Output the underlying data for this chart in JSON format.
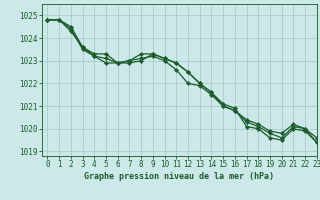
{
  "title": "Graphe pression niveau de la mer (hPa)",
  "background_color": "#cce8e8",
  "plot_bg_color": "#cce8e8",
  "grid_color": "#aacccc",
  "line_color": "#1a5c2a",
  "spine_color": "#2a6e3a",
  "xlim": [
    -0.5,
    23
  ],
  "ylim": [
    1018.8,
    1025.5
  ],
  "yticks": [
    1019,
    1020,
    1021,
    1022,
    1023,
    1024,
    1025
  ],
  "xticks": [
    0,
    1,
    2,
    3,
    4,
    5,
    6,
    7,
    8,
    9,
    10,
    11,
    12,
    13,
    14,
    15,
    16,
    17,
    18,
    19,
    20,
    21,
    22,
    23
  ],
  "series": [
    [
      1024.8,
      1024.8,
      1024.5,
      1023.6,
      1023.3,
      1023.3,
      1022.9,
      1023.0,
      1023.3,
      1023.3,
      1023.1,
      1022.9,
      1022.5,
      1022.0,
      1021.6,
      1021.1,
      1020.9,
      1020.1,
      1020.0,
      1019.6,
      1019.5,
      1020.0,
      1019.9,
      1019.4
    ],
    [
      1024.8,
      1024.8,
      1024.4,
      1023.5,
      1023.2,
      1023.1,
      1022.9,
      1022.9,
      1023.0,
      1023.3,
      1023.1,
      1022.9,
      1022.5,
      1022.0,
      1021.6,
      1021.0,
      1020.8,
      1020.3,
      1020.1,
      1019.8,
      1019.6,
      1020.1,
      1020.0,
      1019.6
    ],
    [
      1024.8,
      1024.8,
      1024.3,
      1023.6,
      1023.2,
      1022.9,
      1022.9,
      1023.0,
      1023.1,
      1023.2,
      1023.0,
      1022.6,
      1022.0,
      1021.9,
      1021.5,
      1021.0,
      1020.8,
      1020.4,
      1020.2,
      1019.9,
      1019.8,
      1020.2,
      1020.0,
      1019.4
    ]
  ],
  "tick_fontsize": 5.5,
  "label_fontsize": 6.0,
  "marker_size": 2.2,
  "linewidth": 0.9
}
